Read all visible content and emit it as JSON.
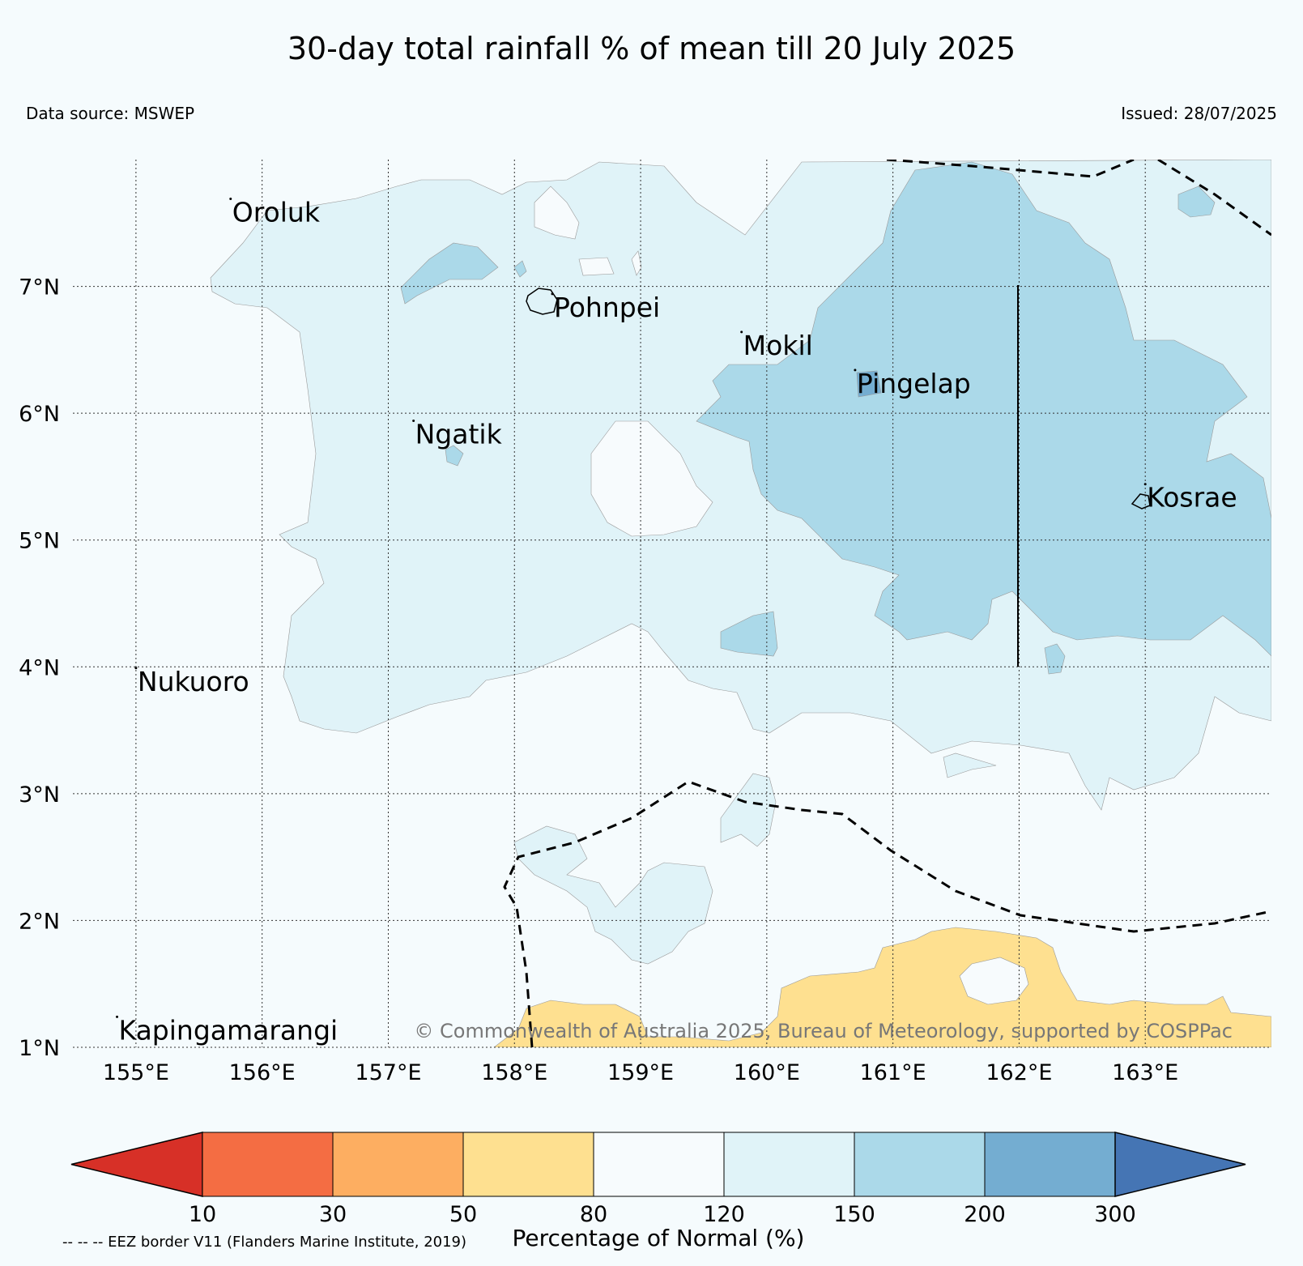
{
  "title": "30-day total rainfall % of mean till 20 July 2025",
  "data_source": "Data source: MSWEP",
  "issued": "Issued: 28/07/2025",
  "copyright": "© Commonwealth of Australia 2025, Bureau of Meteorology, supported by COSPPac",
  "eez_note": "-- -- -- EEZ border V11 (Flanders Marine Institute, 2019)",
  "map": {
    "lon_range": [
      154.5,
      164.0
    ],
    "lat_range": [
      1.0,
      8.0
    ],
    "lon_ticks": [
      {
        "value": 155,
        "label": "155°E"
      },
      {
        "value": 156,
        "label": "156°E"
      },
      {
        "value": 157,
        "label": "157°E"
      },
      {
        "value": 158,
        "label": "158°E"
      },
      {
        "value": 159,
        "label": "159°E"
      },
      {
        "value": 160,
        "label": "160°E"
      },
      {
        "value": 161,
        "label": "161°E"
      },
      {
        "value": 162,
        "label": "162°E"
      },
      {
        "value": 163,
        "label": "163°E"
      }
    ],
    "lat_ticks": [
      {
        "value": 7,
        "label": "7°N"
      },
      {
        "value": 6,
        "label": "6°N"
      },
      {
        "value": 5,
        "label": "5°N"
      },
      {
        "value": 4,
        "label": "4°N"
      },
      {
        "value": 3,
        "label": "3°N"
      },
      {
        "value": 2,
        "label": "2°N"
      },
      {
        "value": 1,
        "label": "1°N"
      }
    ],
    "places": [
      {
        "name": "Oroluk",
        "lon": 155.75,
        "lat": 7.55
      },
      {
        "name": "Pohnpei",
        "lon": 158.3,
        "lat": 6.8
      },
      {
        "name": "Mokil",
        "lon": 159.8,
        "lat": 6.5
      },
      {
        "name": "Pingelap",
        "lon": 160.7,
        "lat": 6.2
      },
      {
        "name": "Ngatik",
        "lon": 157.2,
        "lat": 5.8
      },
      {
        "name": "Kosrae",
        "lon": 163.0,
        "lat": 5.3
      },
      {
        "name": "Nukuoro",
        "lon": 155.0,
        "lat": 3.85
      },
      {
        "name": "Kapingamarangi",
        "lon": 154.85,
        "lat": 1.1
      }
    ]
  },
  "colorbar": {
    "label": "Percentage of Normal (%)",
    "ticks": [
      "10",
      "30",
      "50",
      "80",
      "120",
      "150",
      "200",
      "300"
    ],
    "colors": [
      "#d73027",
      "#f46d43",
      "#fdae61",
      "#fee090",
      "#f7fbfd",
      "#e0f3f8",
      "#abd9e9",
      "#74add1",
      "#4575b4"
    ]
  }
}
